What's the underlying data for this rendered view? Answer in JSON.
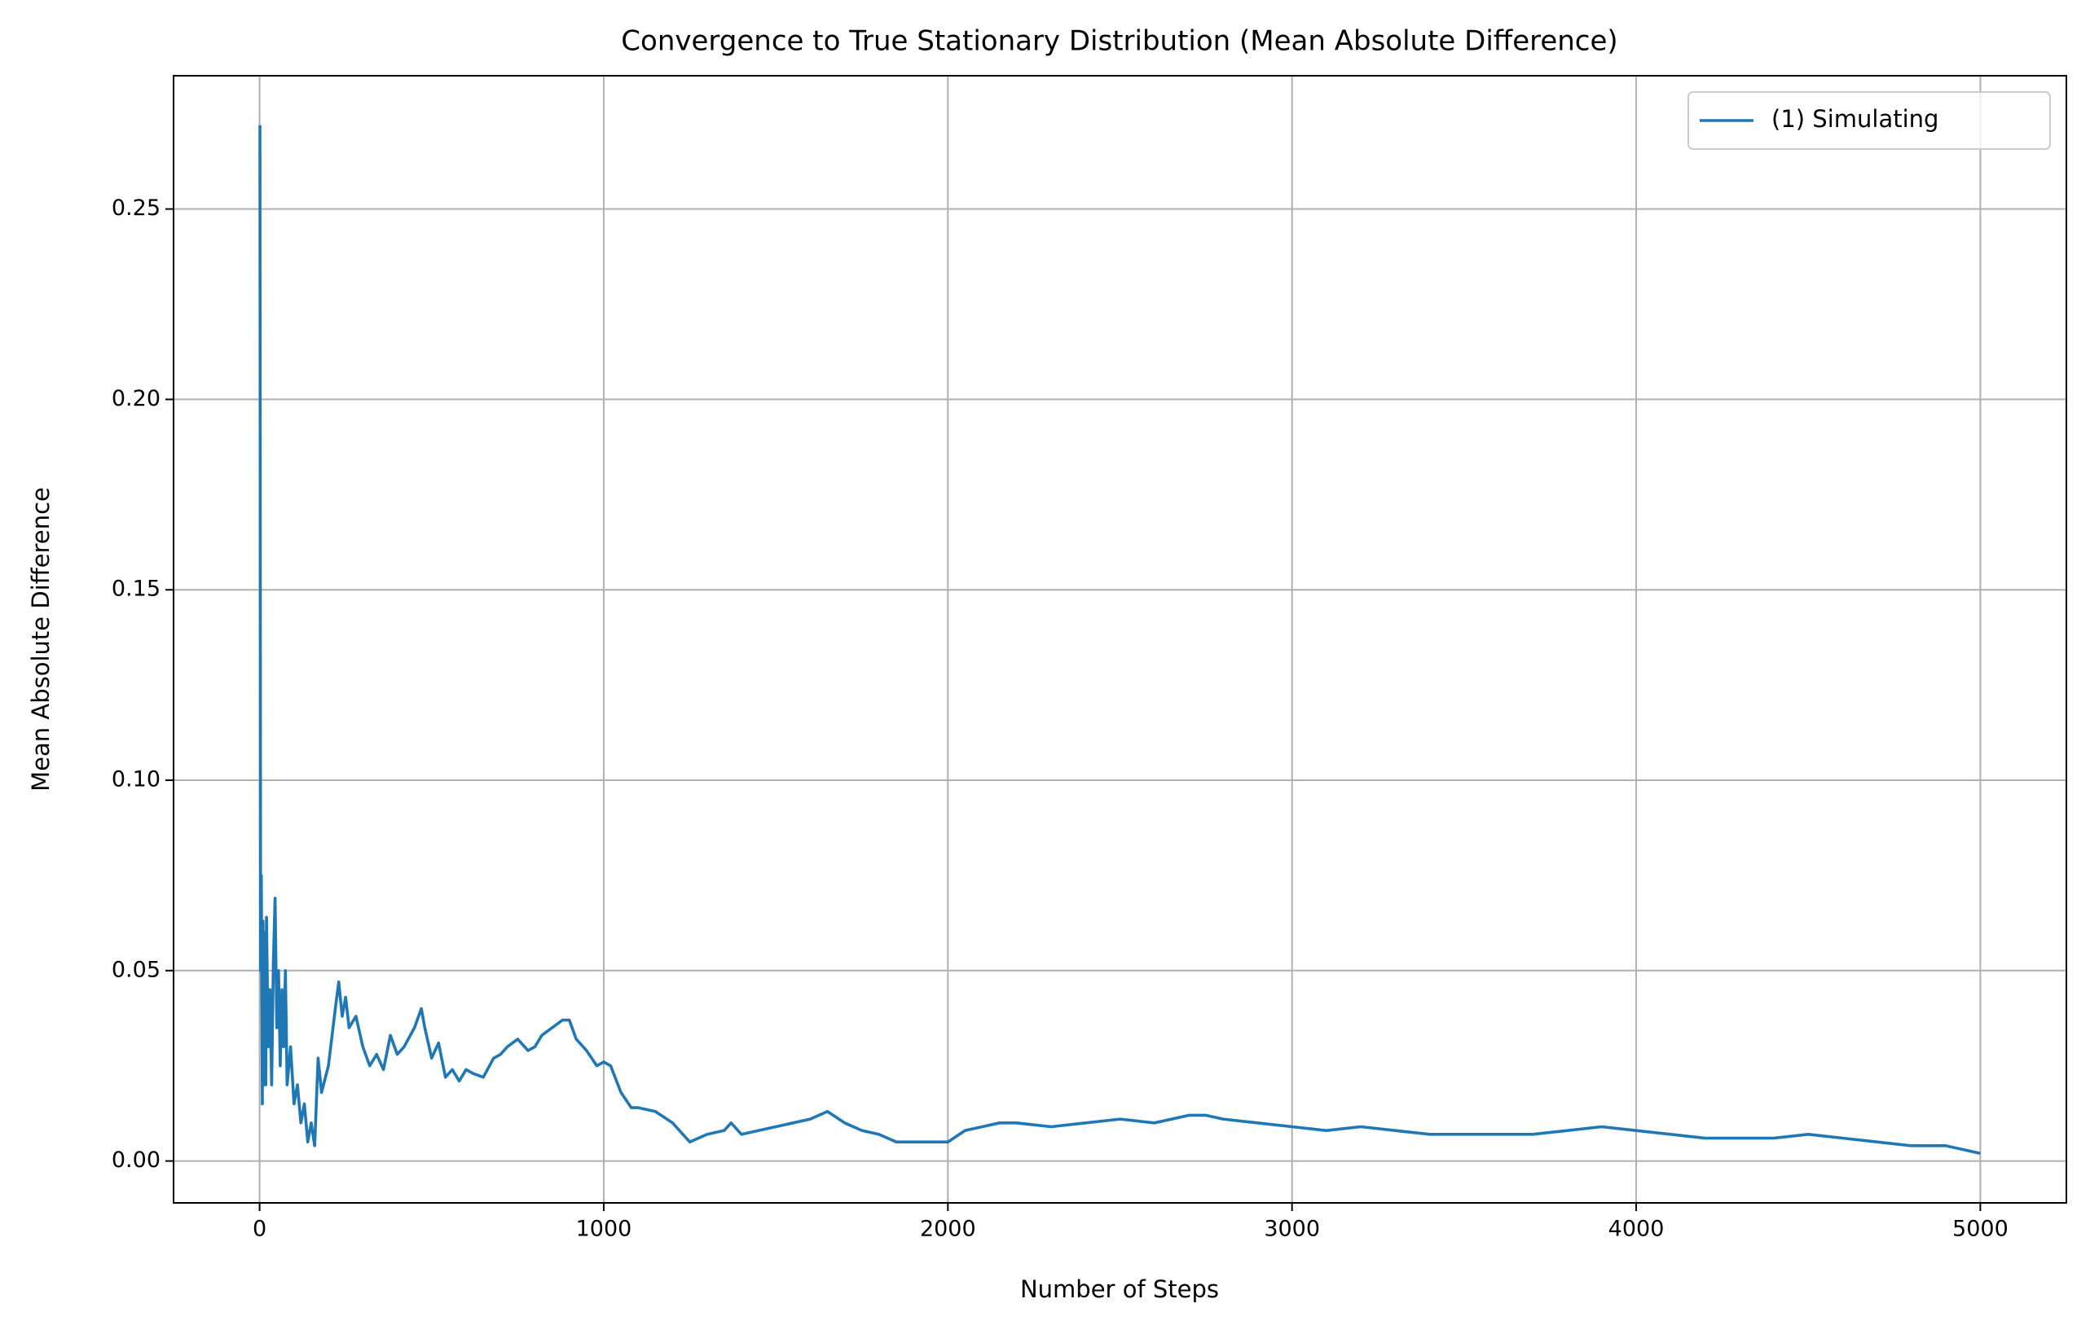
{
  "chart_data": {
    "type": "line",
    "title": "Convergence to True Stationary Distribution (Mean Absolute Difference)",
    "xlabel": "Number of Steps",
    "ylabel": "Mean Absolute Difference",
    "x": [
      1,
      3,
      5,
      8,
      10,
      13,
      15,
      18,
      20,
      25,
      30,
      35,
      40,
      45,
      50,
      55,
      60,
      65,
      70,
      75,
      80,
      90,
      100,
      110,
      120,
      130,
      140,
      150,
      160,
      170,
      180,
      200,
      220,
      230,
      240,
      250,
      260,
      280,
      300,
      320,
      340,
      360,
      380,
      400,
      420,
      450,
      470,
      480,
      500,
      520,
      540,
      560,
      580,
      600,
      620,
      650,
      680,
      700,
      720,
      750,
      780,
      800,
      820,
      850,
      880,
      900,
      920,
      950,
      980,
      1000,
      1020,
      1050,
      1080,
      1100,
      1150,
      1200,
      1250,
      1300,
      1350,
      1370,
      1400,
      1450,
      1500,
      1550,
      1600,
      1650,
      1700,
      1750,
      1800,
      1850,
      1900,
      1950,
      2000,
      2050,
      2100,
      2150,
      2200,
      2300,
      2400,
      2500,
      2600,
      2700,
      2750,
      2800,
      2900,
      3000,
      3100,
      3200,
      3300,
      3400,
      3500,
      3600,
      3700,
      3800,
      3900,
      4000,
      4100,
      4200,
      4300,
      4400,
      4500,
      4600,
      4700,
      4800,
      4900,
      5000
    ],
    "series": [
      {
        "name": "(1) Simulating",
        "color": "#1f77b4",
        "values": [
          0.272,
          0.05,
          0.075,
          0.015,
          0.063,
          0.02,
          0.06,
          0.02,
          0.064,
          0.03,
          0.045,
          0.02,
          0.052,
          0.069,
          0.035,
          0.05,
          0.025,
          0.045,
          0.03,
          0.05,
          0.02,
          0.03,
          0.015,
          0.02,
          0.01,
          0.015,
          0.005,
          0.01,
          0.004,
          0.027,
          0.018,
          0.025,
          0.04,
          0.047,
          0.038,
          0.043,
          0.035,
          0.038,
          0.03,
          0.025,
          0.028,
          0.024,
          0.033,
          0.028,
          0.03,
          0.035,
          0.04,
          0.035,
          0.027,
          0.031,
          0.022,
          0.024,
          0.021,
          0.024,
          0.023,
          0.022,
          0.027,
          0.028,
          0.03,
          0.032,
          0.029,
          0.03,
          0.033,
          0.035,
          0.037,
          0.037,
          0.032,
          0.029,
          0.025,
          0.026,
          0.025,
          0.018,
          0.014,
          0.014,
          0.013,
          0.01,
          0.005,
          0.007,
          0.008,
          0.01,
          0.007,
          0.008,
          0.009,
          0.01,
          0.011,
          0.013,
          0.01,
          0.008,
          0.007,
          0.005,
          0.005,
          0.005,
          0.005,
          0.008,
          0.009,
          0.01,
          0.01,
          0.009,
          0.01,
          0.011,
          0.01,
          0.012,
          0.012,
          0.011,
          0.01,
          0.009,
          0.008,
          0.009,
          0.008,
          0.007,
          0.007,
          0.007,
          0.007,
          0.008,
          0.009,
          0.008,
          0.007,
          0.006,
          0.006,
          0.006,
          0.007,
          0.006,
          0.005,
          0.004,
          0.004,
          0.002
        ]
      }
    ],
    "xlim": [
      -250,
      5250
    ],
    "xticks": [
      0,
      1000,
      2000,
      3000,
      4000,
      5000
    ],
    "ylim": [
      -0.011,
      0.285
    ],
    "yticks": [
      {
        "value": 0,
        "label": "0.00"
      },
      {
        "value": 0.05,
        "label": "0.05"
      },
      {
        "value": 0.1,
        "label": "0.10"
      },
      {
        "value": 0.15,
        "label": "0.15"
      },
      {
        "value": 0.2,
        "label": "0.20"
      },
      {
        "value": 0.25,
        "label": "0.25"
      }
    ],
    "grid": true,
    "legend": "upper right"
  }
}
